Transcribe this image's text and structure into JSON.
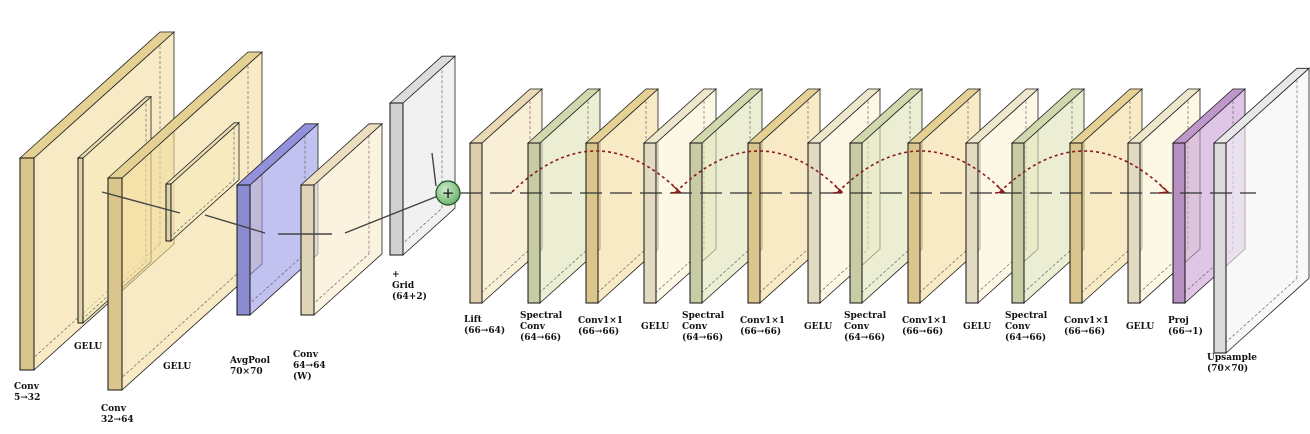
{
  "diagram": {
    "layers": [
      {
        "label": [
          "Conv",
          "5→32"
        ],
        "color": "#f2dc9c"
      },
      {
        "label": [
          "GELU"
        ],
        "color": "#f6e9bd"
      },
      {
        "label": [
          "Conv",
          "32→64"
        ],
        "color": "#f2dc9c"
      },
      {
        "label": [
          "GELU"
        ],
        "color": "#f6e9bd"
      },
      {
        "label": [
          "AvgPool",
          "70×70"
        ],
        "color": "#9a9ae8"
      },
      {
        "label": [
          "Conv",
          "64→64",
          "(W)"
        ],
        "color": "#f8ebc9"
      },
      {
        "label": [
          "+",
          "Grid",
          "(64+2)"
        ],
        "color": "#e8e8e8"
      },
      {
        "label": [
          "Lift",
          "(66→64)"
        ],
        "color": "#f5e4bd"
      },
      {
        "label": [
          "Spectral",
          "Conv",
          "(64→66)"
        ],
        "color": "#dde3b6"
      },
      {
        "label": [
          "Conv1×1",
          "(66→66)"
        ],
        "color": "#f2dc9c"
      },
      {
        "label": [
          "GELU"
        ],
        "color": "#fbf3d6"
      },
      {
        "label": [
          "Spectral",
          "Conv",
          "(64→66)"
        ],
        "color": "#dde3b6"
      },
      {
        "label": [
          "Conv1×1",
          "(66→66)"
        ],
        "color": "#f2dc9c"
      },
      {
        "label": [
          "GELU"
        ],
        "color": "#fbf3d6"
      },
      {
        "label": [
          "Spectral",
          "Conv",
          "(64→66)"
        ],
        "color": "#dde3b6"
      },
      {
        "label": [
          "Conv1×1",
          "(66→66)"
        ],
        "color": "#f2dc9c"
      },
      {
        "label": [
          "GELU"
        ],
        "color": "#fbf3d6"
      },
      {
        "label": [
          "Spectral",
          "Conv",
          "(64→66)"
        ],
        "color": "#dde3b6"
      },
      {
        "label": [
          "Conv1×1",
          "(66→66)"
        ],
        "color": "#f2dc9c"
      },
      {
        "label": [
          "GELU"
        ],
        "color": "#fbf3d6"
      },
      {
        "label": [
          "Proj",
          "(66→1)"
        ],
        "color": "#c9a0d6"
      },
      {
        "label": [
          "Upsample",
          "(70×70)"
        ],
        "color": "#f4f4f4"
      }
    ],
    "sum_node": {
      "symbol": "+",
      "color": "#6fb36f"
    },
    "skip_arc_color": "#8b1a1a"
  }
}
